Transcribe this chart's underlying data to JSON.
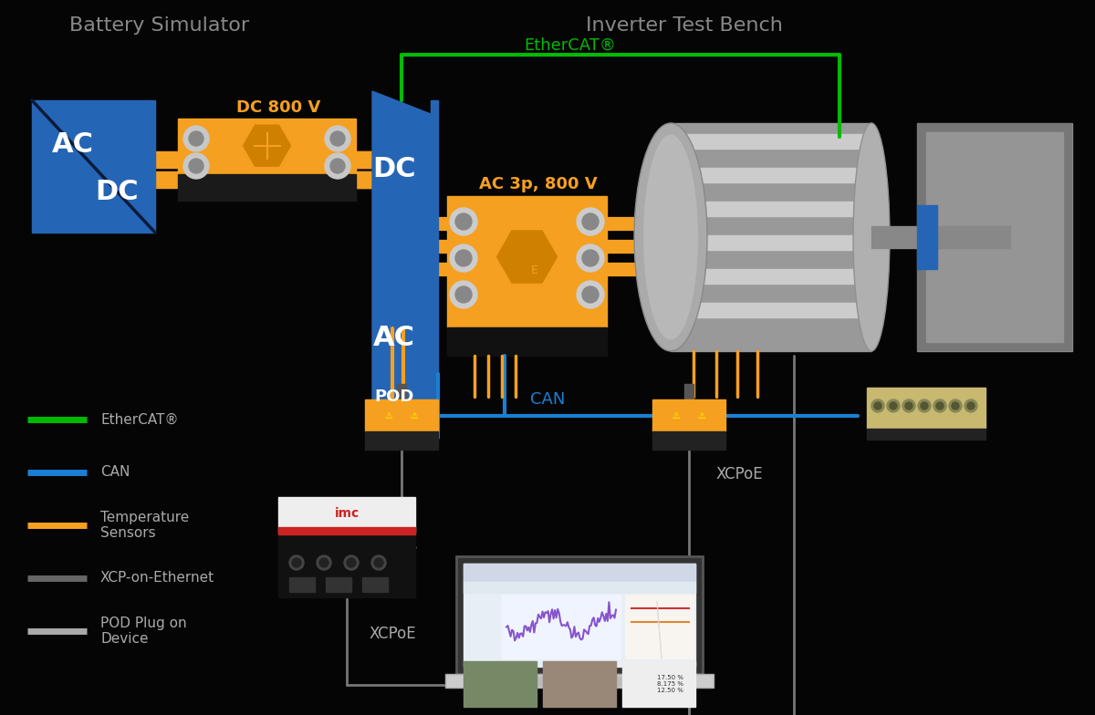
{
  "bg_color": "#050505",
  "title_battery": "Battery Simulator",
  "title_inverter": "Inverter Test Bench",
  "title_color": "#888888",
  "label_ethercat": "EtherCAT®",
  "label_can": "CAN",
  "label_dc800": "DC 800 V",
  "label_ac800": "AC 3p, 800 V",
  "label_pod": "POD",
  "label_xcpoe1": "XCPoE",
  "label_xcpoe2": "XCPoE",
  "color_ethercat": "#00bb00",
  "color_can": "#1a7fd4",
  "color_orange": "#f5a020",
  "color_blue_box": "#2565b5",
  "color_white": "#ffffff",
  "legend_items": [
    {
      "label": "EtherCAT®",
      "color": "#00bb00"
    },
    {
      "label": "CAN",
      "color": "#1a7fd4"
    },
    {
      "label": "Temperature\nSensors",
      "color": "#f5a020"
    },
    {
      "label": "XCP-on-Ethernet",
      "color": "#666666"
    },
    {
      "label": "POD Plug on\nDevice",
      "color": "#aaaaaa"
    }
  ]
}
